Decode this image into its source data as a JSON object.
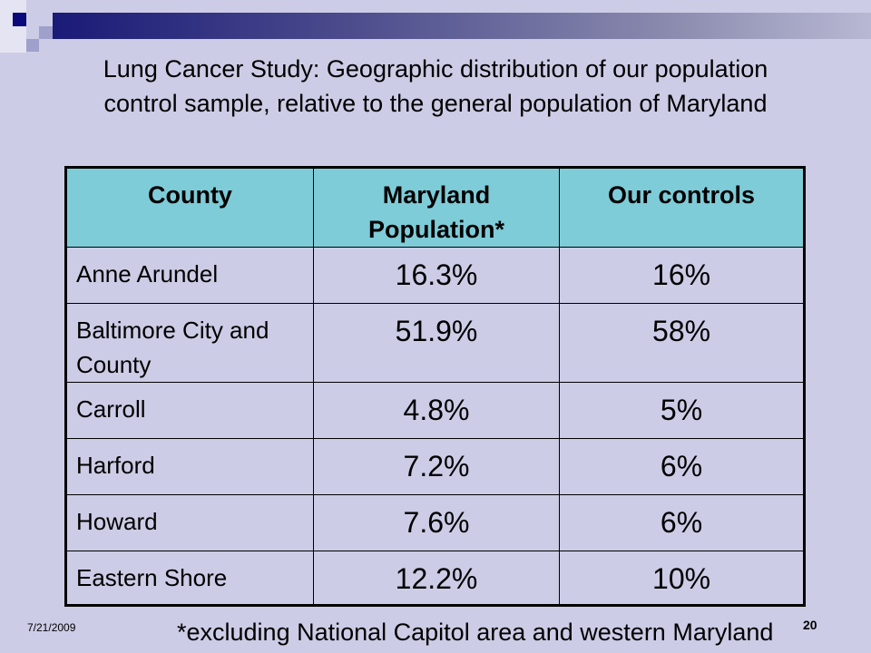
{
  "title": "Lung Cancer Study: Geographic distribution of our population control sample, relative to the general population of Maryland",
  "table": {
    "headers": [
      "County",
      "Maryland Population*",
      "Our controls"
    ],
    "rows": [
      {
        "county": "Anne Arundel",
        "maryland": "16.3%",
        "controls": "16%"
      },
      {
        "county": "Baltimore City and County",
        "maryland": "51.9%",
        "controls": "58%"
      },
      {
        "county": "Carroll",
        "maryland": "4.8%",
        "controls": "5%"
      },
      {
        "county": "Harford",
        "maryland": "7.2%",
        "controls": "6%"
      },
      {
        "county": "Howard",
        "maryland": "7.6%",
        "controls": "6%"
      },
      {
        "county": "Eastern Shore",
        "maryland": "12.2%",
        "controls": "10%"
      }
    ]
  },
  "footnote": "*excluding National Capitol area and western Maryland",
  "date": "7/21/2009",
  "slide_number": "20",
  "colors": {
    "background": "#CCCCE6",
    "header": "#7ECCD8"
  }
}
